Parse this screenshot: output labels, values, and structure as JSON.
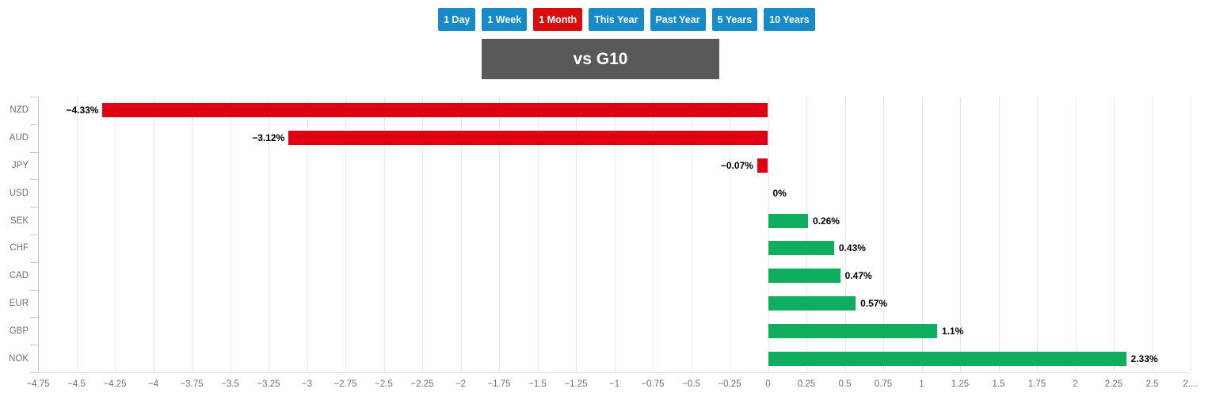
{
  "period_buttons": [
    {
      "label": "1 Day",
      "active": false
    },
    {
      "label": "1 Week",
      "active": false
    },
    {
      "label": "1 Month",
      "active": true
    },
    {
      "label": "This Year",
      "active": false
    },
    {
      "label": "Past Year",
      "active": false
    },
    {
      "label": "5 Years",
      "active": false
    },
    {
      "label": "10 Years",
      "active": false
    }
  ],
  "header": {
    "title": "vs G10"
  },
  "colors": {
    "button_blue": "#178AC8",
    "button_active_red": "#D90D0D",
    "bar_negative": "#E10013",
    "bar_positive": "#0FAE5E",
    "title_bar_gray": "#59595B"
  },
  "chart_data": {
    "type": "bar",
    "orientation": "horizontal",
    "title": "vs G10",
    "categories": [
      "NZD",
      "AUD",
      "JPY",
      "USD",
      "SEK",
      "CHF",
      "CAD",
      "EUR",
      "GBP",
      "NOK"
    ],
    "values": [
      -4.33,
      -3.12,
      -0.07,
      0,
      0.26,
      0.43,
      0.47,
      0.57,
      1.1,
      2.33
    ],
    "value_labels": [
      "−4.33%",
      "−3.12%",
      "−0.07%",
      "0%",
      "0.26%",
      "0.43%",
      "0.47%",
      "0.57%",
      "1.1%",
      "2.33%"
    ],
    "xlim": [
      -4.75,
      2.75
    ],
    "tick_step": 0.25,
    "x_tick_labels": [
      "−4.75",
      "−4.5",
      "−4.25",
      "−4",
      "−3.75",
      "−3.5",
      "−3.25",
      "−3",
      "−2.75",
      "−2.5",
      "−2.25",
      "−2",
      "−1.75",
      "−1.5",
      "−1.25",
      "−1",
      "−0.75",
      "−0.5",
      "−0.25",
      "0",
      "0.25",
      "0.5",
      "0.75",
      "1",
      "1.25",
      "1.5",
      "1.75",
      "2",
      "2.25",
      "2.5",
      "2...."
    ],
    "grid": true,
    "unit": "%"
  }
}
